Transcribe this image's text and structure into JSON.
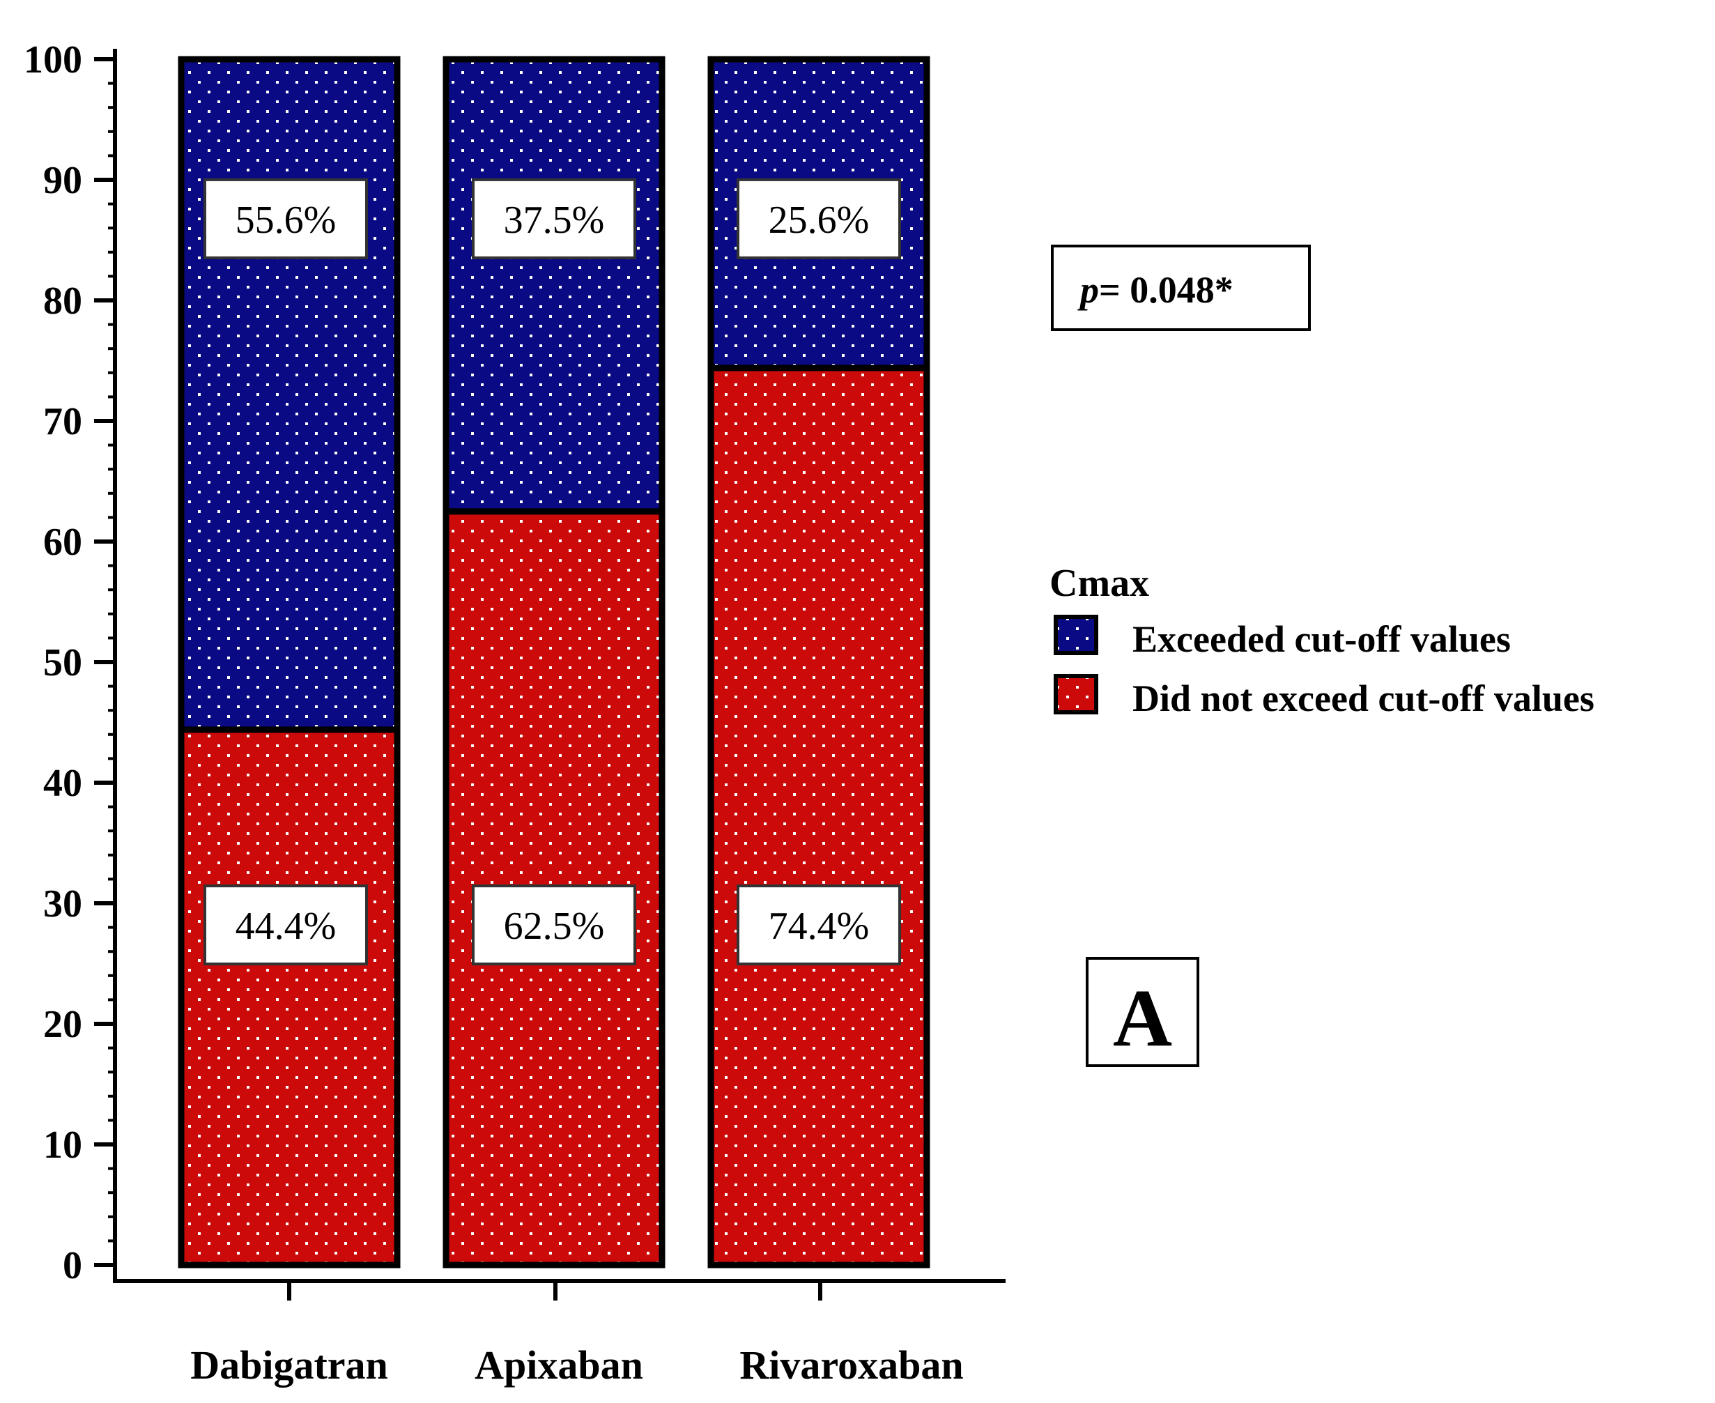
{
  "chart_data": {
    "type": "bar",
    "stacked": true,
    "percent_scale": true,
    "categories": [
      "Dabigatran",
      "Apixaban",
      "Rivaroxaban"
    ],
    "series": [
      {
        "name": "Did not exceed cut-off values",
        "color": "#cc0a0a",
        "values": [
          44.4,
          62.5,
          74.4
        ],
        "labels": [
          "44.4%",
          "62.5%",
          "74.4%"
        ]
      },
      {
        "name": "Exceeded cut-off values",
        "color": "#0a0a84",
        "values": [
          55.6,
          37.5,
          25.6
        ],
        "labels": [
          "55.6%",
          "37.5%",
          "25.6%"
        ]
      }
    ],
    "ylim": [
      0,
      100
    ],
    "yticks": [
      "0",
      "10",
      "20",
      "30",
      "40",
      "50",
      "60",
      "70",
      "80",
      "90",
      "100"
    ],
    "legend": {
      "title": "Cmax",
      "position": "right",
      "entries": [
        "Exceeded cut-off values",
        "Did not exceed cut-off values"
      ]
    },
    "annotation": {
      "p_symbol": "p",
      "p_value": "= 0.048*"
    },
    "panel_label": "A",
    "grid": false
  }
}
